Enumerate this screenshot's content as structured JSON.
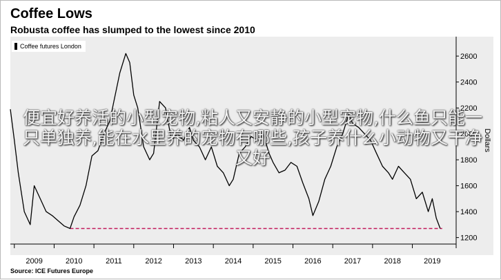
{
  "header": {
    "title": "Coffee Lows",
    "subtitle": "Robusta coffee has slumped to the lowest since 2010"
  },
  "legend": {
    "label": "Coffee futures London"
  },
  "source": "Source: ICE Futures Europe",
  "overlay_text": "便宜好养活的小型宠物,粘人又安静的小型宠物,什么鱼只能一只单独养,能在水里养的宠物有哪些,孩子养什么小动物又干净又好",
  "colors": {
    "line": "#000000",
    "reference": "#c2185b",
    "background": "#ededed"
  },
  "chart_data": {
    "type": "line",
    "title": "Coffee Lows",
    "subtitle": "Robusta coffee has slumped to the lowest since 2010",
    "xlabel": "",
    "ylabel": "Dollars",
    "y_axis_position": "right",
    "ylim": [
      1150,
      2750
    ],
    "yticks": [
      1200,
      1400,
      1600,
      1800,
      2000,
      2200,
      2400,
      2600
    ],
    "xlim": [
      2008.4,
      2019.6
    ],
    "xticks": [
      2009,
      2010,
      2011,
      2012,
      2013,
      2014,
      2015,
      2016,
      2017,
      2018,
      2019
    ],
    "grid": false,
    "legend_position": "top-left",
    "series": [
      {
        "name": "Coffee futures London",
        "x": [
          2008.4,
          2008.5,
          2008.6,
          2008.75,
          2008.9,
          2009.0,
          2009.15,
          2009.3,
          2009.45,
          2009.6,
          2009.75,
          2009.9,
          2010.0,
          2010.15,
          2010.3,
          2010.45,
          2010.6,
          2010.75,
          2010.9,
          2011.0,
          2011.15,
          2011.3,
          2011.4,
          2011.5,
          2011.6,
          2011.75,
          2011.9,
          2012.0,
          2012.15,
          2012.3,
          2012.45,
          2012.6,
          2012.75,
          2012.9,
          2013.0,
          2013.15,
          2013.3,
          2013.45,
          2013.6,
          2013.75,
          2013.9,
          2014.0,
          2014.15,
          2014.3,
          2014.45,
          2014.6,
          2014.75,
          2014.9,
          2015.0,
          2015.15,
          2015.3,
          2015.45,
          2015.6,
          2015.75,
          2015.9,
          2016.0,
          2016.15,
          2016.3,
          2016.45,
          2016.6,
          2016.75,
          2016.9,
          2017.0,
          2017.15,
          2017.3,
          2017.45,
          2017.6,
          2017.75,
          2017.9,
          2018.0,
          2018.15,
          2018.3,
          2018.45,
          2018.6,
          2018.75,
          2018.9,
          2019.0,
          2019.1,
          2019.2
        ],
        "values": [
          2190,
          1950,
          1700,
          1400,
          1300,
          1600,
          1500,
          1400,
          1370,
          1330,
          1290,
          1270,
          1360,
          1450,
          1600,
          1830,
          1870,
          2000,
          2100,
          2250,
          2470,
          2620,
          2550,
          2300,
          2200,
          1900,
          1800,
          1850,
          2250,
          2200,
          1950,
          2000,
          1950,
          2050,
          1950,
          1900,
          1800,
          1900,
          1750,
          1700,
          1600,
          1650,
          1850,
          1900,
          1980,
          1950,
          2000,
          1850,
          1780,
          1700,
          1720,
          1780,
          1750,
          1620,
          1500,
          1370,
          1480,
          1650,
          1750,
          1900,
          2000,
          2150,
          2080,
          2050,
          2000,
          1950,
          1850,
          1750,
          1700,
          1650,
          1750,
          1700,
          1650,
          1500,
          1550,
          1400,
          1500,
          1350,
          1270
        ]
      }
    ],
    "reference_line": {
      "value": 1270,
      "x_start": 2009.9,
      "x_end": 2019.25
    }
  }
}
